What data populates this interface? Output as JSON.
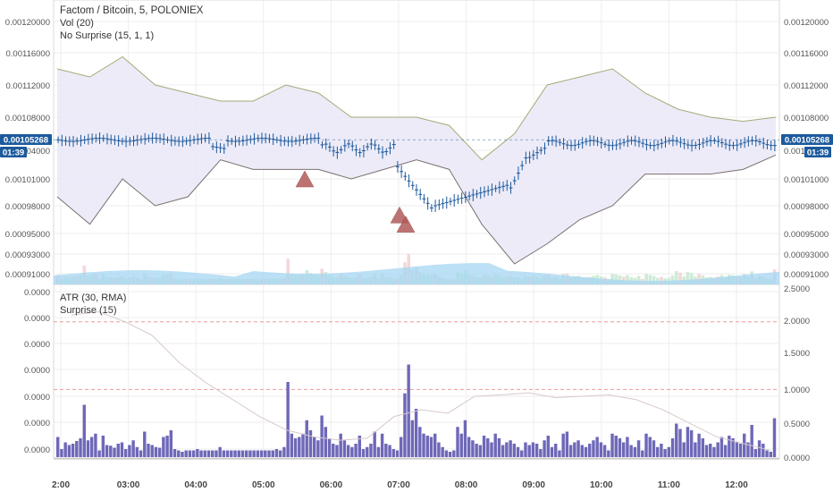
{
  "chart_title": "Factom / Bitcoin, 5, POLONIEX",
  "main_legend": [
    "Vol (20)",
    "No Surprise (15, 1, 1)"
  ],
  "sub_legend": [
    "ATR (30, RMA)",
    "Surprise (15)"
  ],
  "price_badge": "0.00105268",
  "countdown": "01:39",
  "colors": {
    "candle": "#1c5a9c",
    "band_fill": "#ebe9f7",
    "upper_band": "#a7a977",
    "lower_band": "#7c7070",
    "volume_up": "#c6e8d0",
    "volume_down": "#f1d1d2",
    "volume_ma": "#a6d6f2",
    "marker": "#b35b5b",
    "surprise_bar": "#6e68b8",
    "atr_line": "#d8c8cc",
    "hline": "#ee9a9a",
    "badge": "#1c5a9c"
  },
  "chart_data": [
    {
      "type": "candlestick",
      "title": "Factom / Bitcoin, 5, POLONIEX",
      "x_ticks": [
        "2:00",
        "03:00",
        "04:00",
        "05:00",
        "06:00",
        "07:00",
        "08:00",
        "09:00",
        "10:00",
        "11:00",
        "12:00"
      ],
      "y_ticks_right": [
        "0.00120000",
        "0.00116000",
        "0.00112000",
        "0.00108000",
        "0.00104000",
        "0.00101000",
        "0.00098000",
        "0.00095000",
        "0.00093000",
        "0.00091000"
      ],
      "y_ticks_left": [
        "0.00120000",
        "0.00116000",
        "0.00112000",
        "0.00108000",
        "0.00104000",
        "0.00101000",
        "0.00098000",
        "0.00095000",
        "0.00093000",
        "0.00091000"
      ],
      "series": [
        {
          "name": "No Surprise (15, 1, 1)",
          "upper": [
            0.00114,
            0.00113,
            0.001155,
            0.00112,
            0.00111,
            0.0011,
            0.0011,
            0.00112,
            0.00111,
            0.00108,
            0.00108,
            0.00108,
            0.00107,
            0.00103,
            0.00106,
            0.00112,
            0.00113,
            0.00114,
            0.00111,
            0.00109,
            0.00108,
            0.001075,
            0.00108
          ]
        },
        {
          "name": "No Surprise lower",
          "lower": [
            0.00099,
            0.00096,
            0.00101,
            0.00098,
            0.00099,
            0.00103,
            0.00102,
            0.00102,
            0.00102,
            0.00101,
            0.00102,
            0.00103,
            0.00102,
            0.00096,
            0.00092,
            0.00094,
            0.000965,
            0.00098,
            0.001015,
            0.001015,
            0.001015,
            0.00102,
            0.001035
          ]
        }
      ],
      "markers": [
        0.00101,
        0.00097,
        0.00096
      ]
    },
    {
      "type": "bar",
      "title": "ATR (30, RMA)",
      "y_ticks_left": [
        "0.0000",
        "0.0000",
        "0.0000",
        "0.0000",
        "0.0000",
        "0.0000",
        "0.0000"
      ],
      "y_ticks_right": [
        "2.5000",
        "2.0000",
        "1.5000",
        "1.0000",
        "0.5000",
        "0.0000"
      ],
      "hlines": [
        2.0,
        1.0
      ],
      "series": [
        {
          "name": "Surprise (15)",
          "values": [
            0.3,
            0.12,
            0.22,
            0.18,
            0.2,
            0.24,
            0.28,
            0.78,
            0.25,
            0.3,
            0.35,
            0.1,
            0.32,
            0.18,
            0.17,
            0.14,
            0.2,
            0.22,
            0.12,
            0.18,
            0.25,
            0.15,
            0.1,
            0.38,
            0.2,
            0.18,
            0.15,
            0.14,
            0.3,
            0.32,
            0.4,
            0.12,
            0.1,
            0.08,
            0.1,
            0.1,
            0.1,
            0.12,
            0.1,
            0.1,
            0.1,
            0.1,
            0.1,
            0.15,
            0.1,
            0.1,
            0.1,
            0.1,
            0.1,
            0.1,
            0.1,
            0.1,
            0.1,
            0.1,
            0.1,
            0.1,
            0.1,
            0.1,
            0.12,
            0.1,
            0.15,
            1.12,
            0.35,
            0.28,
            0.3,
            0.35,
            0.55,
            0.4,
            0.3,
            0.25,
            0.62,
            0.45,
            0.28,
            0.2,
            0.18,
            0.35,
            0.25,
            0.18,
            0.15,
            0.2,
            0.32,
            0.12,
            0.15,
            0.2,
            0.38,
            0.15,
            0.35,
            0.2,
            0.18,
            0.12,
            0.1,
            0.3,
            0.95,
            1.38,
            0.55,
            0.72,
            0.45,
            0.35,
            0.32,
            0.3,
            0.35,
            0.22,
            0.15,
            0.1,
            0.08,
            0.1,
            0.45,
            0.35,
            0.55,
            0.3,
            0.25,
            0.2,
            0.18,
            0.32,
            0.28,
            0.22,
            0.35,
            0.28,
            0.18,
            0.22,
            0.25,
            0.2,
            0.15,
            0.1,
            0.22,
            0.18,
            0.22,
            0.2,
            0.12,
            0.25,
            0.32,
            0.15,
            0.2,
            0.1,
            0.35,
            0.38,
            0.18,
            0.22,
            0.25,
            0.18,
            0.15,
            0.2,
            0.25,
            0.3,
            0.22,
            0.18,
            0.1,
            0.35,
            0.32,
            0.28,
            0.22,
            0.3,
            0.18,
            0.15,
            0.25,
            0.1,
            0.35,
            0.3,
            0.25,
            0.15,
            0.2,
            0.12,
            0.15,
            0.28,
            0.5,
            0.42,
            0.22,
            0.45,
            0.4,
            0.22,
            0.35,
            0.28,
            0.18,
            0.2,
            0.15,
            0.22,
            0.3,
            0.18,
            0.32,
            0.28,
            0.22,
            0.2,
            0.35,
            0.22,
            0.48,
            0.12,
            0.25,
            0.2,
            0.1,
            0.08,
            0.58
          ]
        },
        {
          "name": "ATR (30, RMA)",
          "values": [
            2.1,
            2.15,
            2.0,
            1.8,
            1.4,
            1.1,
            0.85,
            0.6,
            0.4,
            0.3,
            0.25,
            0.28,
            0.6,
            0.7,
            0.65,
            0.9,
            0.92,
            0.95,
            0.88,
            0.9,
            0.92,
            0.85,
            0.7,
            0.5,
            0.3,
            0.2,
            0.1
          ]
        }
      ]
    }
  ]
}
